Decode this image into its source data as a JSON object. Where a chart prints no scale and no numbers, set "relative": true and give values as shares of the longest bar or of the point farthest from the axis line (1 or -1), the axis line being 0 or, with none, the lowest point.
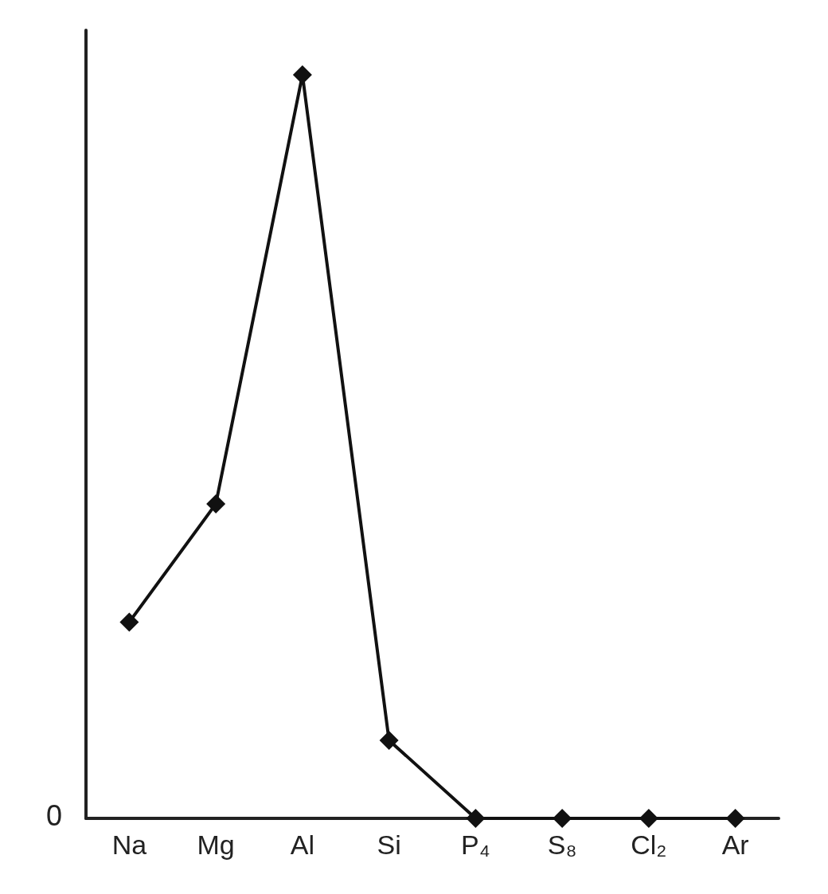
{
  "chart_data": {
    "type": "line",
    "categories": [
      "Na",
      "Mg",
      "Al",
      "Si",
      "P₄",
      "S₈",
      "Cl₂",
      "Ar"
    ],
    "series": [
      {
        "color": "#111111",
        "values": [
          0.264,
          0.423,
          1,
          0.105,
          0,
          0,
          0,
          0
        ]
      }
    ],
    "relative": true,
    "marker": "diamond",
    "line_style": "solid",
    "grid": false,
    "annotations": [
      "0"
    ]
  }
}
